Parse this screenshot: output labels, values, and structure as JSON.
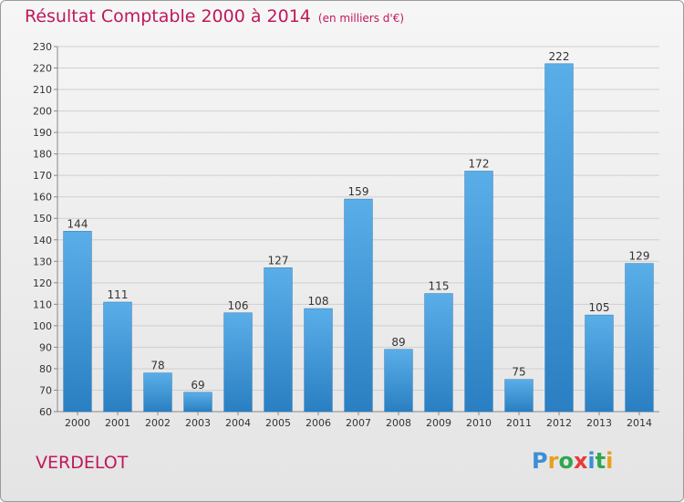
{
  "header": {
    "title": "Résultat Comptable 2000 à 2014",
    "unit": "(en milliers d'€)"
  },
  "commune": "VERDELOT",
  "logo": {
    "text": "Proxiti",
    "colors": [
      "#3a8fd8",
      "#e8a020",
      "#2fa84f",
      "#e83a3a",
      "#3a8fd8",
      "#2fa84f",
      "#e8a020"
    ]
  },
  "chart_data": {
    "type": "bar",
    "categories": [
      "2000",
      "2001",
      "2002",
      "2003",
      "2004",
      "2005",
      "2006",
      "2007",
      "2008",
      "2009",
      "2010",
      "2011",
      "2012",
      "2013",
      "2014"
    ],
    "values": [
      144,
      111,
      78,
      69,
      106,
      127,
      108,
      159,
      89,
      115,
      172,
      75,
      222,
      105,
      129
    ],
    "ylim": [
      60,
      230
    ],
    "ytick_step": 10,
    "grid": true,
    "bar_color": "#3f9ad9"
  }
}
